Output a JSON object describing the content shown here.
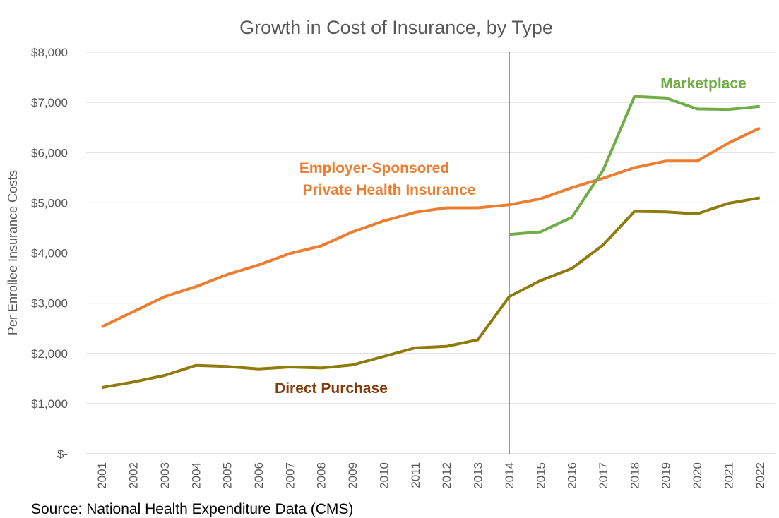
{
  "chart_data": {
    "type": "line",
    "title": "Growth in Cost of Insurance, by Type",
    "ylabel": "Per Enrollee Insurance Costs",
    "xlabel": "",
    "source": "Source: National Health Expenditure Data (CMS)",
    "x": [
      "2001",
      "2002",
      "2003",
      "2004",
      "2005",
      "2006",
      "2007",
      "2008",
      "2009",
      "2010",
      "2011",
      "2012",
      "2013",
      "2014",
      "2015",
      "2016",
      "2017",
      "2018",
      "2019",
      "2020",
      "2021",
      "2022"
    ],
    "ylim": [
      0,
      8000
    ],
    "yticks": [
      0,
      1000,
      2000,
      3000,
      4000,
      5000,
      6000,
      7000,
      8000
    ],
    "ytick_labels": [
      "$-",
      "$1,000",
      "$2,000",
      "$3,000",
      "$4,000",
      "$5,000",
      "$6,000",
      "$7,000",
      "$8,000"
    ],
    "grid": true,
    "vertical_marker": 13.5,
    "series": [
      {
        "name": "Employer-Sponsored Private Health Insurance",
        "label_lines": [
          "Employer-Sponsored",
          "Private Health Insurance"
        ],
        "color": "#ED7D31",
        "values": [
          2530,
          2830,
          3130,
          3330,
          3570,
          3760,
          3990,
          4140,
          4420,
          4640,
          4810,
          4900,
          4900,
          4960,
          5080,
          5300,
          5490,
          5700,
          5830,
          5830,
          6190,
          6490
        ]
      },
      {
        "name": "Marketplace",
        "label_lines": [
          "Marketplace"
        ],
        "color": "#70AD47",
        "values": [
          null,
          null,
          null,
          null,
          null,
          null,
          null,
          null,
          null,
          null,
          null,
          null,
          null,
          4370,
          4420,
          4710,
          5650,
          7120,
          7090,
          6870,
          6860,
          6920
        ]
      },
      {
        "name": "Direct Purchase",
        "label_lines": [
          "Direct Purchase"
        ],
        "color": "#8F7A0C",
        "label_color": "#843C0C",
        "values": [
          1320,
          1430,
          1560,
          1760,
          1740,
          1690,
          1730,
          1710,
          1770,
          1940,
          2110,
          2140,
          2270,
          3130,
          3450,
          3690,
          4160,
          4830,
          4820,
          4780,
          4990,
          5100
        ]
      }
    ]
  }
}
